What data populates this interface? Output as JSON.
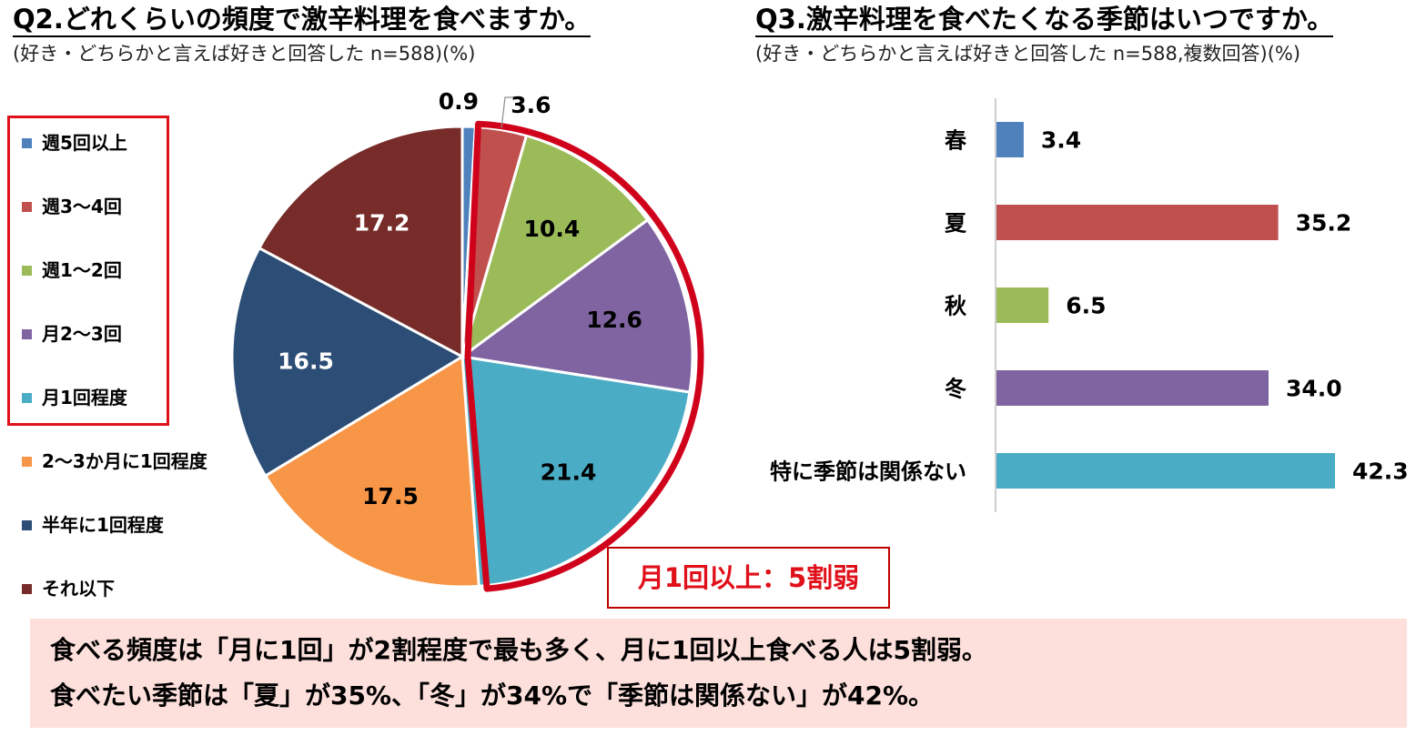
{
  "q2": {
    "title": "Q2.どれくらいの頻度で激辛料理を食べますか。",
    "subtitle": "(好き・どちらかと言えば好きと回答した n=588)(%)"
  },
  "q3": {
    "title": "Q3.激辛料理を食べたくなる季節はいつですか。",
    "subtitle": "(好き・どちらかと言えば好きと回答した n=588,複数回答)(%)"
  },
  "callout": "月1回以上：5割弱",
  "summary": {
    "line1": "食べる頻度は「月に1回」が2割程度で最も多く、月に1回以上食べる人は5割弱。",
    "line2": "食べたい季節は「夏」が35%、「冬」が34%で「季節は関係ない」が42%。"
  },
  "chart_data": [
    {
      "type": "pie",
      "title": "Q2.どれくらいの頻度で激辛料理を食べますか。",
      "categories": [
        "週5回以上",
        "週3～4回",
        "週1～2回",
        "月2～3回",
        "月1回程度",
        "2～3か月に1回程度",
        "半年に1回程度",
        "それ以下"
      ],
      "labels": [
        "0.9",
        "3.6",
        "10.4",
        "12.6",
        "21.4",
        "17.5",
        "16.5",
        "17.2"
      ],
      "values": [
        0.9,
        3.6,
        10.4,
        12.6,
        21.4,
        17.5,
        16.5,
        17.2
      ],
      "colors": [
        "#4f81bd",
        "#c0504d",
        "#9bbb59",
        "#8064a2",
        "#4bacc6",
        "#f79646",
        "#2c4d75",
        "#772c2a"
      ],
      "highlight": {
        "categories": [
          "週5回以上",
          "週3～4回",
          "週1～2回",
          "月2～3回",
          "月1回程度"
        ],
        "color": "#d0021b"
      },
      "legend": "left"
    },
    {
      "type": "bar",
      "orientation": "horizontal",
      "title": "Q3.激辛料理を食べたくなる季節はいつですか。",
      "categories": [
        "春",
        "夏",
        "秋",
        "冬",
        "特に季節は関係ない"
      ],
      "labels": [
        "3.4",
        "35.2",
        "6.5",
        "34.0",
        "42.3"
      ],
      "values": [
        3.4,
        35.2,
        6.5,
        34.0,
        42.3
      ],
      "colors": [
        "#4f81bd",
        "#c0504d",
        "#9bbb59",
        "#8064a2",
        "#4bacc6"
      ],
      "xlim": [
        0,
        45
      ],
      "grid": false
    }
  ]
}
